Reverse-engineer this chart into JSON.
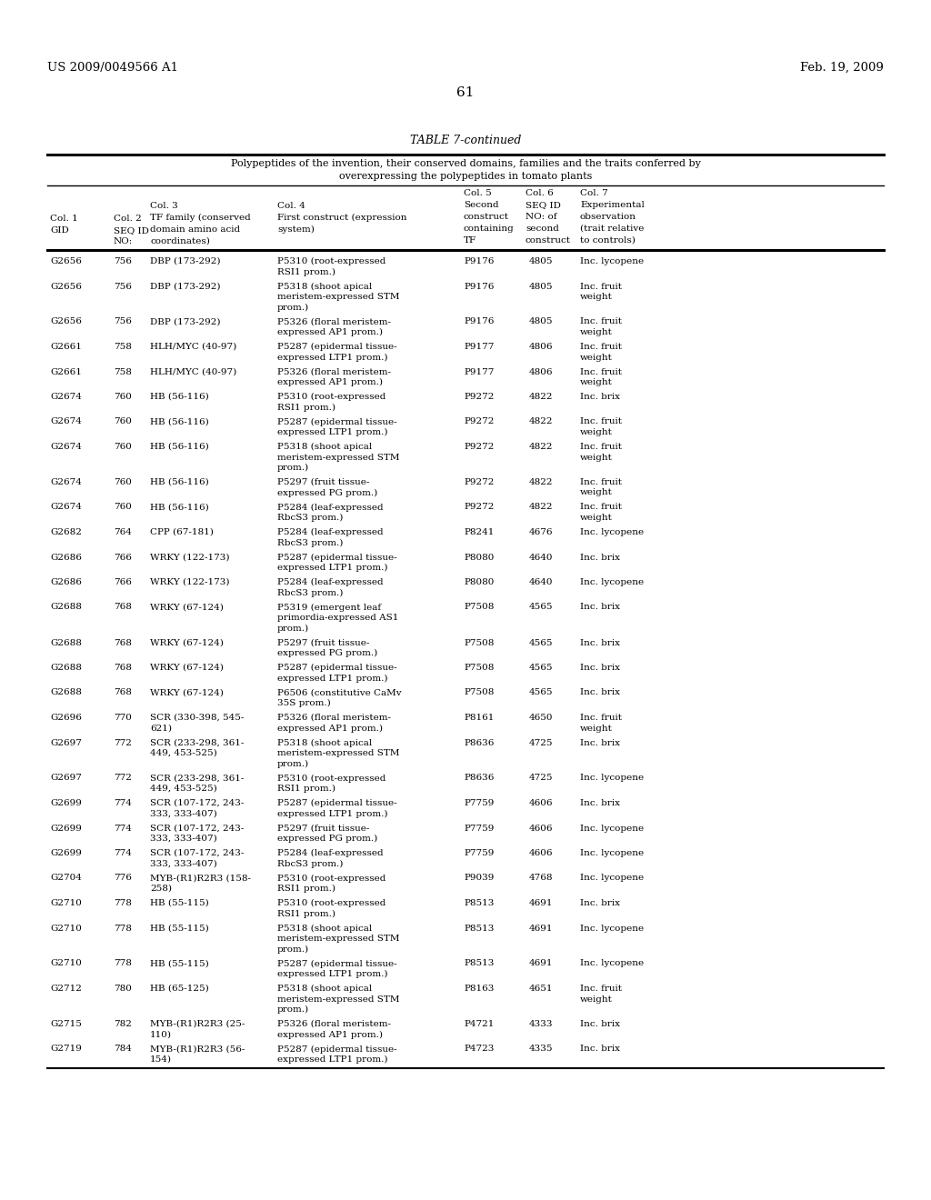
{
  "header_left": "US 2009/0049566 A1",
  "header_right": "Feb. 19, 2009",
  "page_number": "61",
  "table_title": "TABLE 7-continued",
  "table_subtitle1": "Polypeptides of the invention, their conserved domains, families and the traits conferred by",
  "table_subtitle2": "overexpressing the polypeptides in tomato plants",
  "rows": [
    [
      "G2656",
      "756",
      "DBP (173-292)",
      "P5310 (root-expressed\nRSI1 prom.)",
      "P9176",
      "4805",
      "Inc. lycopene"
    ],
    [
      "G2656",
      "756",
      "DBP (173-292)",
      "P5318 (shoot apical\nmeristem-expressed STM\nprom.)",
      "P9176",
      "4805",
      "Inc. fruit\nweight"
    ],
    [
      "G2656",
      "756",
      "DBP (173-292)",
      "P5326 (floral meristem-\nexpressed AP1 prom.)",
      "P9176",
      "4805",
      "Inc. fruit\nweight"
    ],
    [
      "G2661",
      "758",
      "HLH/MYC (40-97)",
      "P5287 (epidermal tissue-\nexpressed LTP1 prom.)",
      "P9177",
      "4806",
      "Inc. fruit\nweight"
    ],
    [
      "G2661",
      "758",
      "HLH/MYC (40-97)",
      "P5326 (floral meristem-\nexpressed AP1 prom.)",
      "P9177",
      "4806",
      "Inc. fruit\nweight"
    ],
    [
      "G2674",
      "760",
      "HB (56-116)",
      "P5310 (root-expressed\nRSI1 prom.)",
      "P9272",
      "4822",
      "Inc. brix"
    ],
    [
      "G2674",
      "760",
      "HB (56-116)",
      "P5287 (epidermal tissue-\nexpressed LTP1 prom.)",
      "P9272",
      "4822",
      "Inc. fruit\nweight"
    ],
    [
      "G2674",
      "760",
      "HB (56-116)",
      "P5318 (shoot apical\nmeristem-expressed STM\nprom.)",
      "P9272",
      "4822",
      "Inc. fruit\nweight"
    ],
    [
      "G2674",
      "760",
      "HB (56-116)",
      "P5297 (fruit tissue-\nexpressed PG prom.)",
      "P9272",
      "4822",
      "Inc. fruit\nweight"
    ],
    [
      "G2674",
      "760",
      "HB (56-116)",
      "P5284 (leaf-expressed\nRbcS3 prom.)",
      "P9272",
      "4822",
      "Inc. fruit\nweight"
    ],
    [
      "G2682",
      "764",
      "CPP (67-181)",
      "P5284 (leaf-expressed\nRbcS3 prom.)",
      "P8241",
      "4676",
      "Inc. lycopene"
    ],
    [
      "G2686",
      "766",
      "WRKY (122-173)",
      "P5287 (epidermal tissue-\nexpressed LTP1 prom.)",
      "P8080",
      "4640",
      "Inc. brix"
    ],
    [
      "G2686",
      "766",
      "WRKY (122-173)",
      "P5284 (leaf-expressed\nRbcS3 prom.)",
      "P8080",
      "4640",
      "Inc. lycopene"
    ],
    [
      "G2688",
      "768",
      "WRKY (67-124)",
      "P5319 (emergent leaf\nprimordia-expressed AS1\nprom.)",
      "P7508",
      "4565",
      "Inc. brix"
    ],
    [
      "G2688",
      "768",
      "WRKY (67-124)",
      "P5297 (fruit tissue-\nexpressed PG prom.)",
      "P7508",
      "4565",
      "Inc. brix"
    ],
    [
      "G2688",
      "768",
      "WRKY (67-124)",
      "P5287 (epidermal tissue-\nexpressed LTP1 prom.)",
      "P7508",
      "4565",
      "Inc. brix"
    ],
    [
      "G2688",
      "768",
      "WRKY (67-124)",
      "P6506 (constitutive CaMv\n35S prom.)",
      "P7508",
      "4565",
      "Inc. brix"
    ],
    [
      "G2696",
      "770",
      "SCR (330-398, 545-\n621)",
      "P5326 (floral meristem-\nexpressed AP1 prom.)",
      "P8161",
      "4650",
      "Inc. fruit\nweight"
    ],
    [
      "G2697",
      "772",
      "SCR (233-298, 361-\n449, 453-525)",
      "P5318 (shoot apical\nmeristem-expressed STM\nprom.)",
      "P8636",
      "4725",
      "Inc. brix"
    ],
    [
      "G2697",
      "772",
      "SCR (233-298, 361-\n449, 453-525)",
      "P5310 (root-expressed\nRSI1 prom.)",
      "P8636",
      "4725",
      "Inc. lycopene"
    ],
    [
      "G2699",
      "774",
      "SCR (107-172, 243-\n333, 333-407)",
      "P5287 (epidermal tissue-\nexpressed LTP1 prom.)",
      "P7759",
      "4606",
      "Inc. brix"
    ],
    [
      "G2699",
      "774",
      "SCR (107-172, 243-\n333, 333-407)",
      "P5297 (fruit tissue-\nexpressed PG prom.)",
      "P7759",
      "4606",
      "Inc. lycopene"
    ],
    [
      "G2699",
      "774",
      "SCR (107-172, 243-\n333, 333-407)",
      "P5284 (leaf-expressed\nRbcS3 prom.)",
      "P7759",
      "4606",
      "Inc. lycopene"
    ],
    [
      "G2704",
      "776",
      "MYB-(R1)R2R3 (158-\n258)",
      "P5310 (root-expressed\nRSI1 prom.)",
      "P9039",
      "4768",
      "Inc. lycopene"
    ],
    [
      "G2710",
      "778",
      "HB (55-115)",
      "P5310 (root-expressed\nRSI1 prom.)",
      "P8513",
      "4691",
      "Inc. brix"
    ],
    [
      "G2710",
      "778",
      "HB (55-115)",
      "P5318 (shoot apical\nmeristem-expressed STM\nprom.)",
      "P8513",
      "4691",
      "Inc. lycopene"
    ],
    [
      "G2710",
      "778",
      "HB (55-115)",
      "P5287 (epidermal tissue-\nexpressed LTP1 prom.)",
      "P8513",
      "4691",
      "Inc. lycopene"
    ],
    [
      "G2712",
      "780",
      "HB (65-125)",
      "P5318 (shoot apical\nmeristem-expressed STM\nprom.)",
      "P8163",
      "4651",
      "Inc. fruit\nweight"
    ],
    [
      "G2715",
      "782",
      "MYB-(R1)R2R3 (25-\n110)",
      "P5326 (floral meristem-\nexpressed AP1 prom.)",
      "P4721",
      "4333",
      "Inc. brix"
    ],
    [
      "G2719",
      "784",
      "MYB-(R1)R2R3 (56-\n154)",
      "P5287 (epidermal tissue-\nexpressed LTP1 prom.)",
      "P4723",
      "4335",
      "Inc. brix"
    ]
  ],
  "bg_color": "#ffffff",
  "text_color": "#000000"
}
